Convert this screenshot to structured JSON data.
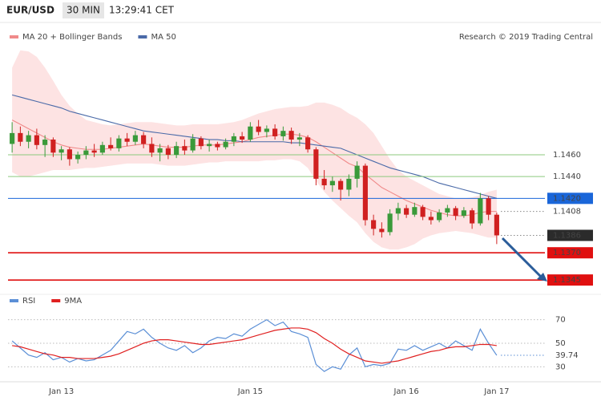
{
  "header": {
    "symbol": "EUR/USD",
    "interval": "30 MIN",
    "time": "13:29:41 CET",
    "source": "Research © 2019 Trading Central"
  },
  "chart_data": [
    {
      "type": "candlestick",
      "categories": [
        null,
        null,
        null,
        null,
        null,
        null,
        "Jan 13",
        null,
        null,
        null,
        null,
        null,
        null,
        null,
        null,
        null,
        null,
        null,
        null,
        null,
        null,
        null,
        null,
        null,
        null,
        null,
        null,
        null,
        null,
        "Jan 15",
        null,
        null,
        null,
        null,
        null,
        null,
        null,
        null,
        null,
        null,
        null,
        null,
        null,
        null,
        null,
        null,
        null,
        null,
        "Jan 16",
        null,
        null,
        null,
        null,
        null,
        null,
        null,
        null,
        null,
        null,
        "Jan 17"
      ],
      "open": [
        1.147,
        1.148,
        1.1472,
        1.1478,
        1.1469,
        1.1474,
        1.1462,
        1.1465,
        1.1456,
        1.146,
        1.1464,
        1.1462,
        1.1469,
        1.1466,
        1.1475,
        1.1472,
        1.1478,
        1.147,
        1.1462,
        1.1466,
        1.146,
        1.1468,
        1.1464,
        1.1475,
        1.1468,
        1.147,
        1.1467,
        1.1472,
        1.1477,
        1.1474,
        1.1486,
        1.1481,
        1.1484,
        1.1477,
        1.1482,
        1.1474,
        1.1476,
        1.1465,
        1.1438,
        1.1432,
        1.1436,
        1.1428,
        1.1438,
        1.145,
        1.14,
        1.1392,
        1.1389,
        1.1406,
        1.1411,
        1.1405,
        1.1412,
        1.1403,
        1.14,
        1.1407,
        1.1411,
        1.1404,
        1.1409,
        1.1397,
        1.142,
        1.1405
      ],
      "high": [
        1.149,
        1.1486,
        1.1482,
        1.1484,
        1.1478,
        1.1476,
        1.1468,
        1.1467,
        1.1463,
        1.1468,
        1.147,
        1.1472,
        1.1476,
        1.1478,
        1.148,
        1.1482,
        1.1481,
        1.1476,
        1.147,
        1.1469,
        1.1472,
        1.1474,
        1.1479,
        1.1477,
        1.1474,
        1.1472,
        1.1475,
        1.148,
        1.1481,
        1.149,
        1.1492,
        1.1487,
        1.1488,
        1.1486,
        1.1485,
        1.148,
        1.1478,
        1.1467,
        1.1446,
        1.144,
        1.1438,
        1.1442,
        1.1454,
        1.1452,
        1.1405,
        1.1398,
        1.141,
        1.1416,
        1.1414,
        1.1416,
        1.1414,
        1.1408,
        1.141,
        1.1414,
        1.1413,
        1.1412,
        1.1411,
        1.1425,
        1.1422,
        1.1407
      ],
      "low": [
        1.1462,
        1.1468,
        1.1466,
        1.1465,
        1.1458,
        1.1458,
        1.1455,
        1.145,
        1.1452,
        1.1456,
        1.1458,
        1.146,
        1.1464,
        1.1463,
        1.1468,
        1.1469,
        1.1466,
        1.1458,
        1.1454,
        1.1456,
        1.1457,
        1.146,
        1.1462,
        1.1465,
        1.1463,
        1.1464,
        1.1465,
        1.1468,
        1.1471,
        1.1472,
        1.1478,
        1.1476,
        1.1474,
        1.1473,
        1.147,
        1.1468,
        1.1462,
        1.1432,
        1.1428,
        1.1426,
        1.1418,
        1.1422,
        1.143,
        1.1395,
        1.1386,
        1.1384,
        1.1386,
        1.14,
        1.1402,
        1.1403,
        1.14,
        1.1396,
        1.1398,
        1.1403,
        1.14,
        1.1402,
        1.1392,
        1.1395,
        1.14,
        1.1378
      ],
      "close": [
        1.148,
        1.1472,
        1.1478,
        1.1469,
        1.1474,
        1.1462,
        1.1465,
        1.1456,
        1.146,
        1.1464,
        1.1462,
        1.1469,
        1.1466,
        1.1475,
        1.1472,
        1.1478,
        1.147,
        1.1462,
        1.1466,
        1.146,
        1.1468,
        1.1464,
        1.1475,
        1.1468,
        1.147,
        1.1467,
        1.1472,
        1.1477,
        1.1474,
        1.1486,
        1.1481,
        1.1484,
        1.1477,
        1.1482,
        1.1474,
        1.1476,
        1.1465,
        1.1438,
        1.1432,
        1.1436,
        1.1428,
        1.1438,
        1.145,
        1.14,
        1.1392,
        1.1389,
        1.1406,
        1.1411,
        1.1405,
        1.1412,
        1.1403,
        1.14,
        1.1407,
        1.1411,
        1.1404,
        1.1409,
        1.1397,
        1.142,
        1.1405,
        1.1386
      ],
      "up_color": "#3a9a3a",
      "down_color": "#d02020",
      "series": [
        {
          "name": "MA 20 + Bollinger Bands",
          "color": "#f08a8a",
          "band_color": "#fde3e3",
          "values": [
            1.1492,
            1.1488,
            1.1484,
            1.148,
            1.1476,
            1.1472,
            1.1469,
            1.1467,
            1.1466,
            1.1465,
            1.1465,
            1.1465,
            1.1466,
            1.1467,
            1.1468,
            1.1469,
            1.147,
            1.1469,
            1.1468,
            1.1467,
            1.1467,
            1.1467,
            1.1468,
            1.1469,
            1.1469,
            1.1469,
            1.147,
            1.1471,
            1.1472,
            1.1474,
            1.1476,
            1.1477,
            1.1478,
            1.1479,
            1.1479,
            1.1478,
            1.1476,
            1.1472,
            1.1467,
            1.1462,
            1.1457,
            1.1452,
            1.1449,
            1.1442,
            1.1436,
            1.143,
            1.1426,
            1.1422,
            1.1418,
            1.1415,
            1.1412,
            1.1409,
            1.1407,
            1.1405,
            1.1404,
            1.1404,
            1.1405,
            1.1407,
            1.1408,
            1.1408
          ],
          "band_upper": [
            1.154,
            1.1556,
            1.1555,
            1.155,
            1.154,
            1.1528,
            1.1515,
            1.1505,
            1.1498,
            1.1492,
            1.149,
            1.1488,
            1.1487,
            1.1488,
            1.1489,
            1.149,
            1.149,
            1.149,
            1.1489,
            1.1488,
            1.1487,
            1.1487,
            1.1488,
            1.1488,
            1.1488,
            1.1488,
            1.1489,
            1.149,
            1.1492,
            1.1495,
            1.1498,
            1.15,
            1.1502,
            1.1503,
            1.1504,
            1.1504,
            1.1505,
            1.1508,
            1.1508,
            1.1506,
            1.1503,
            1.1498,
            1.1494,
            1.1488,
            1.148,
            1.1468,
            1.1456,
            1.1446,
            1.144,
            1.1436,
            1.1432,
            1.1428,
            1.1424,
            1.1422,
            1.142,
            1.142,
            1.1421,
            1.1423,
            1.1426,
            1.1428
          ],
          "band_lower": [
            1.1444,
            1.144,
            1.144,
            1.1442,
            1.1444,
            1.1446,
            1.1446,
            1.1446,
            1.1447,
            1.1448,
            1.1448,
            1.1449,
            1.145,
            1.1451,
            1.1452,
            1.1452,
            1.1452,
            1.1452,
            1.1451,
            1.145,
            1.145,
            1.145,
            1.1451,
            1.1452,
            1.1453,
            1.1453,
            1.1454,
            1.1454,
            1.1454,
            1.1454,
            1.1454,
            1.1455,
            1.1455,
            1.1456,
            1.1456,
            1.1454,
            1.1448,
            1.1436,
            1.1426,
            1.1418,
            1.1411,
            1.1404,
            1.1398,
            1.1388,
            1.138,
            1.1375,
            1.1373,
            1.1373,
            1.1375,
            1.1378,
            1.1383,
            1.1386,
            1.1388,
            1.1389,
            1.139,
            1.1389,
            1.1388,
            1.1386,
            1.1384,
            1.1384
          ]
        },
        {
          "name": "MA 50",
          "color": "#4a6aa8",
          "values": [
            1.1515,
            1.1513,
            1.1511,
            1.1509,
            1.1507,
            1.1505,
            1.1503,
            1.15,
            1.1498,
            1.1496,
            1.1494,
            1.1492,
            1.149,
            1.1488,
            1.1486,
            1.1484,
            1.1482,
            1.1481,
            1.148,
            1.1479,
            1.1478,
            1.1477,
            1.1476,
            1.1475,
            1.1474,
            1.1474,
            1.1473,
            1.1473,
            1.1472,
            1.1472,
            1.1472,
            1.1472,
            1.1472,
            1.1472,
            1.1471,
            1.1471,
            1.147,
            1.1469,
            1.1468,
            1.1467,
            1.1466,
            1.1463,
            1.146,
            1.1457,
            1.1454,
            1.1451,
            1.1448,
            1.1446,
            1.1444,
            1.1442,
            1.144,
            1.1437,
            1.1434,
            1.1432,
            1.143,
            1.1428,
            1.1426,
            1.1424,
            1.1422,
            1.142
          ]
        }
      ],
      "levels": [
        {
          "value": 1.146,
          "label": "1.1460",
          "color": "#8cc97e",
          "badge": false
        },
        {
          "value": 1.144,
          "label": "1.1440",
          "color": "#8cc97e",
          "badge": false
        },
        {
          "value": 1.142,
          "label": "1.1420",
          "color": "#1a66d9",
          "badge": true
        },
        {
          "value": 1.137,
          "label": "1.1370",
          "color": "#e01010",
          "badge": true
        },
        {
          "value": 1.1345,
          "color": "#e01010",
          "badge": true
        }
      ],
      "ylim": [
        1.1337,
        1.1558
      ]
    },
    {
      "type": "line",
      "series": [
        {
          "name": "RSI",
          "color": "#5b8fd6",
          "values": [
            52,
            46,
            40,
            38,
            42,
            36,
            38,
            34,
            37,
            35,
            36,
            40,
            44,
            52,
            60,
            58,
            62,
            55,
            50,
            46,
            44,
            48,
            42,
            46,
            52,
            55,
            54,
            58,
            56,
            62,
            66,
            70,
            65,
            68,
            60,
            58,
            55,
            32,
            26,
            30,
            28,
            40,
            46,
            30,
            32,
            31,
            33,
            45,
            44,
            48,
            44,
            47,
            50,
            46,
            52,
            48,
            44,
            62,
            50,
            39.74
          ]
        },
        {
          "name": "9MA",
          "color": "#e02020",
          "values": [
            48,
            47,
            45,
            43,
            41,
            40,
            38,
            38,
            37,
            37,
            37,
            38,
            39,
            41,
            44,
            47,
            50,
            52,
            53,
            53,
            52,
            51,
            50,
            49,
            49,
            50,
            51,
            52,
            53,
            55,
            57,
            59,
            61,
            62,
            63,
            63,
            62,
            59,
            54,
            50,
            45,
            41,
            38,
            35,
            34,
            33,
            34,
            35,
            37,
            39,
            41,
            43,
            44,
            46,
            47,
            47,
            48,
            49,
            49,
            48
          ]
        }
      ],
      "ylim": [
        20,
        80
      ],
      "yticks": [
        70,
        50,
        30
      ]
    }
  ]
}
